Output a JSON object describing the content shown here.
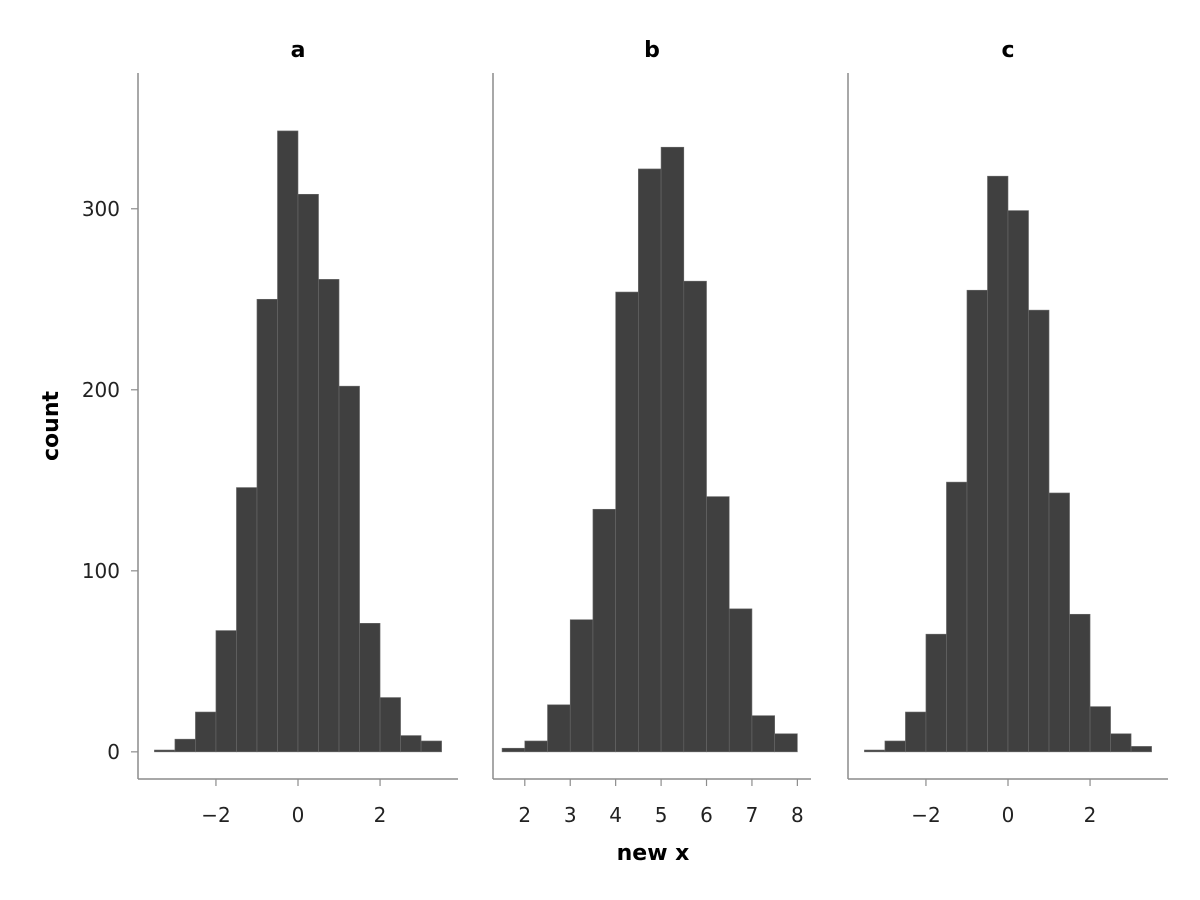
{
  "chart_data": {
    "type": "bar",
    "chart_kind": "histogram",
    "facets": [
      "a",
      "b",
      "c"
    ],
    "xlabel": "new x",
    "ylabel": "count",
    "ylim": [
      -15,
      375
    ],
    "yticks": [
      0,
      100,
      200,
      300
    ],
    "bar_color": "#404040",
    "bar_edge_color": "#6a6a6a",
    "panels": [
      {
        "title": "a",
        "xlim": [
          -3.9,
          3.9
        ],
        "xticks": [
          -2,
          0,
          2
        ],
        "xtick_labels": [
          "−2",
          "0",
          "2"
        ],
        "bins": [
          {
            "x0": -3.5,
            "x1": -3.0,
            "count": 1
          },
          {
            "x0": -3.0,
            "x1": -2.5,
            "count": 7
          },
          {
            "x0": -2.5,
            "x1": -2.0,
            "count": 22
          },
          {
            "x0": -2.0,
            "x1": -1.5,
            "count": 67
          },
          {
            "x0": -1.5,
            "x1": -1.0,
            "count": 146
          },
          {
            "x0": -1.0,
            "x1": -0.5,
            "count": 250
          },
          {
            "x0": -0.5,
            "x1": 0.0,
            "count": 343
          },
          {
            "x0": 0.0,
            "x1": 0.5,
            "count": 308
          },
          {
            "x0": 0.5,
            "x1": 1.0,
            "count": 261
          },
          {
            "x0": 1.0,
            "x1": 1.5,
            "count": 202
          },
          {
            "x0": 1.5,
            "x1": 2.0,
            "count": 71
          },
          {
            "x0": 2.0,
            "x1": 2.5,
            "count": 30
          },
          {
            "x0": 2.5,
            "x1": 3.0,
            "count": 9
          },
          {
            "x0": 3.0,
            "x1": 3.5,
            "count": 6
          }
        ]
      },
      {
        "title": "b",
        "xlim": [
          1.3,
          8.3
        ],
        "xticks": [
          2,
          3,
          4,
          5,
          6,
          7,
          8
        ],
        "xtick_labels": [
          "2",
          "3",
          "4",
          "5",
          "6",
          "7",
          "8"
        ],
        "bins": [
          {
            "x0": 1.5,
            "x1": 2.0,
            "count": 2
          },
          {
            "x0": 2.0,
            "x1": 2.5,
            "count": 6
          },
          {
            "x0": 2.5,
            "x1": 3.0,
            "count": 26
          },
          {
            "x0": 3.0,
            "x1": 3.5,
            "count": 73
          },
          {
            "x0": 3.5,
            "x1": 4.0,
            "count": 134
          },
          {
            "x0": 4.0,
            "x1": 4.5,
            "count": 254
          },
          {
            "x0": 4.5,
            "x1": 5.0,
            "count": 322
          },
          {
            "x0": 5.0,
            "x1": 5.5,
            "count": 334
          },
          {
            "x0": 5.5,
            "x1": 6.0,
            "count": 260
          },
          {
            "x0": 6.0,
            "x1": 6.5,
            "count": 141
          },
          {
            "x0": 6.5,
            "x1": 7.0,
            "count": 79
          },
          {
            "x0": 7.0,
            "x1": 7.5,
            "count": 20
          },
          {
            "x0": 7.5,
            "x1": 8.0,
            "count": 10
          }
        ]
      },
      {
        "title": "c",
        "xlim": [
          -3.9,
          3.9
        ],
        "xticks": [
          -2,
          0,
          2
        ],
        "xtick_labels": [
          "−2",
          "0",
          "2"
        ],
        "bins": [
          {
            "x0": -3.5,
            "x1": -3.0,
            "count": 1
          },
          {
            "x0": -3.0,
            "x1": -2.5,
            "count": 6
          },
          {
            "x0": -2.5,
            "x1": -2.0,
            "count": 22
          },
          {
            "x0": -2.0,
            "x1": -1.5,
            "count": 65
          },
          {
            "x0": -1.5,
            "x1": -1.0,
            "count": 149
          },
          {
            "x0": -1.0,
            "x1": -0.5,
            "count": 255
          },
          {
            "x0": -0.5,
            "x1": 0.0,
            "count": 318
          },
          {
            "x0": 0.0,
            "x1": 0.5,
            "count": 299
          },
          {
            "x0": 0.5,
            "x1": 1.0,
            "count": 244
          },
          {
            "x0": 1.0,
            "x1": 1.5,
            "count": 143
          },
          {
            "x0": 1.5,
            "x1": 2.0,
            "count": 76
          },
          {
            "x0": 2.0,
            "x1": 2.5,
            "count": 25
          },
          {
            "x0": 2.5,
            "x1": 3.0,
            "count": 10
          },
          {
            "x0": 3.0,
            "x1": 3.5,
            "count": 3
          }
        ]
      }
    ]
  }
}
